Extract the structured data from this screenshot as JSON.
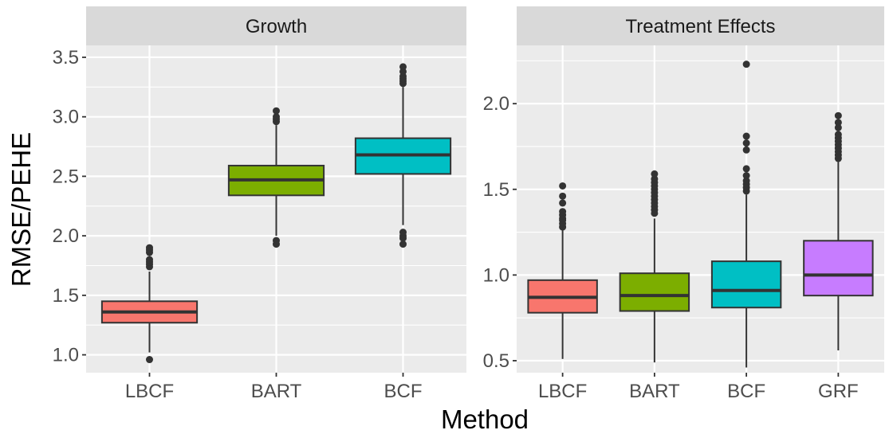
{
  "chart_data": {
    "type": "box",
    "ylabel": "RMSE/PEHE",
    "xlabel": "Method",
    "grid": true,
    "colors": {
      "LBCF": "#F8766D",
      "BART": "#7CAE00",
      "BCF": "#00BFC4",
      "GRF": "#C77CFF"
    },
    "panels": [
      {
        "title": "Growth",
        "ylim": [
          0.85,
          3.6
        ],
        "yticks": [
          1.0,
          1.5,
          2.0,
          2.5,
          3.0,
          3.5
        ],
        "categories": [
          "LBCF",
          "BART",
          "BCF"
        ],
        "boxes": [
          {
            "name": "LBCF",
            "whisker_low": 1.02,
            "q1": 1.27,
            "median": 1.36,
            "q3": 1.45,
            "whisker_high": 1.7,
            "outliers": [
              0.96,
              1.74,
              1.76,
              1.78,
              1.8,
              1.86,
              1.88,
              1.9
            ]
          },
          {
            "name": "BART",
            "whisker_low": 2.0,
            "q1": 2.34,
            "median": 2.47,
            "q3": 2.59,
            "whisker_high": 2.93,
            "outliers": [
              1.93,
              1.96,
              2.96,
              2.98,
              3.0,
              3.05
            ]
          },
          {
            "name": "BCF",
            "whisker_low": 2.09,
            "q1": 2.52,
            "median": 2.68,
            "q3": 2.82,
            "whisker_high": 3.25,
            "outliers": [
              1.93,
              1.98,
              2.0,
              2.03,
              3.28,
              3.3,
              3.32,
              3.34,
              3.38,
              3.42
            ]
          }
        ]
      },
      {
        "title": "Treatment Effects",
        "ylim": [
          0.43,
          2.34
        ],
        "yticks": [
          0.5,
          1.0,
          1.5,
          2.0
        ],
        "categories": [
          "LBCF",
          "BART",
          "BCF",
          "GRF"
        ],
        "boxes": [
          {
            "name": "LBCF",
            "whisker_low": 0.51,
            "q1": 0.78,
            "median": 0.87,
            "q3": 0.97,
            "whisker_high": 1.26,
            "outliers": [
              1.28,
              1.3,
              1.32,
              1.33,
              1.35,
              1.37,
              1.42,
              1.46,
              1.52
            ]
          },
          {
            "name": "BART",
            "whisker_low": 0.49,
            "q1": 0.79,
            "median": 0.88,
            "q3": 1.01,
            "whisker_high": 1.33,
            "outliers": [
              1.36,
              1.38,
              1.4,
              1.42,
              1.44,
              1.46,
              1.48,
              1.5,
              1.52,
              1.54,
              1.56,
              1.59
            ]
          },
          {
            "name": "BCF",
            "whisker_low": 0.46,
            "q1": 0.81,
            "median": 0.91,
            "q3": 1.08,
            "whisker_high": 1.47,
            "outliers": [
              1.49,
              1.51,
              1.53,
              1.55,
              1.58,
              1.62,
              1.73,
              1.77,
              1.81,
              2.23
            ]
          },
          {
            "name": "GRF",
            "whisker_low": 0.56,
            "q1": 0.88,
            "median": 1.0,
            "q3": 1.2,
            "whisker_high": 1.66,
            "outliers": [
              1.68,
              1.7,
              1.72,
              1.74,
              1.76,
              1.78,
              1.8,
              1.82,
              1.86,
              1.89,
              1.93
            ]
          }
        ]
      }
    ]
  }
}
